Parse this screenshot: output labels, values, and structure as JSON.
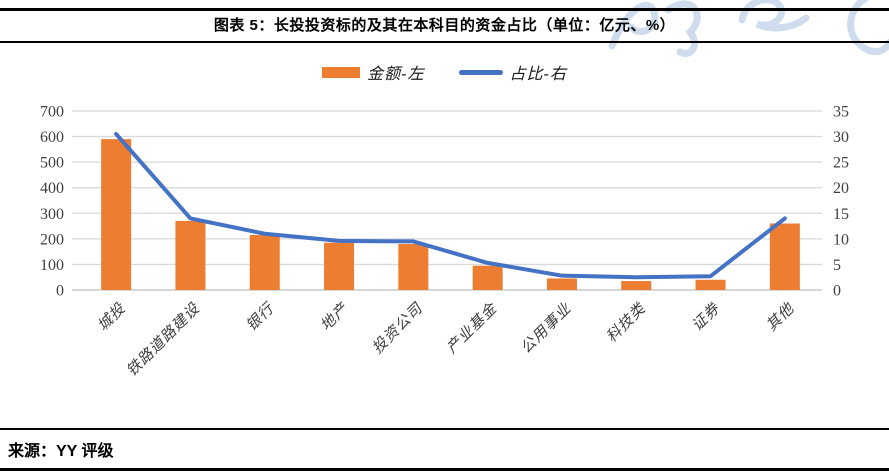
{
  "figure": {
    "title": "图表 5：长投投资标的及其在本科目的资金占比（单位：亿元、%）",
    "source": "来源：YY 评级"
  },
  "legend": [
    {
      "label": "金额-左",
      "color": "#ED7D31",
      "swatch": "bar"
    },
    {
      "label": "占比-右",
      "color": "#4472C4",
      "swatch": "line"
    }
  ],
  "chart_data": {
    "type": "bar",
    "subtype": "combo-bar-line-dual-axis",
    "title": "图表 5：长投投资标的及其在本科目的资金占比（单位：亿元、%）",
    "categories": [
      "城投",
      "铁路道路建设",
      "银行",
      "地产",
      "投资公司",
      "产业基金",
      "公用事业",
      "科技类",
      "证券",
      "其他"
    ],
    "series": [
      {
        "name": "金额-左",
        "type": "bar",
        "axis": "left",
        "color": "#ED7D31",
        "values": [
          590,
          270,
          215,
          185,
          180,
          95,
          45,
          35,
          40,
          260
        ]
      },
      {
        "name": "占比-右",
        "type": "line",
        "axis": "right",
        "color": "#4472C4",
        "values": [
          30.5,
          14,
          11,
          9.6,
          9.5,
          5.3,
          2.8,
          2.5,
          2.7,
          14
        ]
      }
    ],
    "left_axis": {
      "min": 0,
      "max": 700,
      "step": 100,
      "unit": "亿元"
    },
    "right_axis": {
      "min": 0,
      "max": 35,
      "step": 5,
      "unit": "%"
    },
    "grid": true,
    "legend_position": "top",
    "category_label_rotation": -45
  },
  "colors": {
    "bar": "#ED7D31",
    "line": "#4472C4",
    "grid": "#D9D9D9",
    "axis_zero_line": "#BFBFBF",
    "axis_text": "#3F3F3F",
    "rule": "#000000",
    "watermark": "#C9D9EC"
  }
}
